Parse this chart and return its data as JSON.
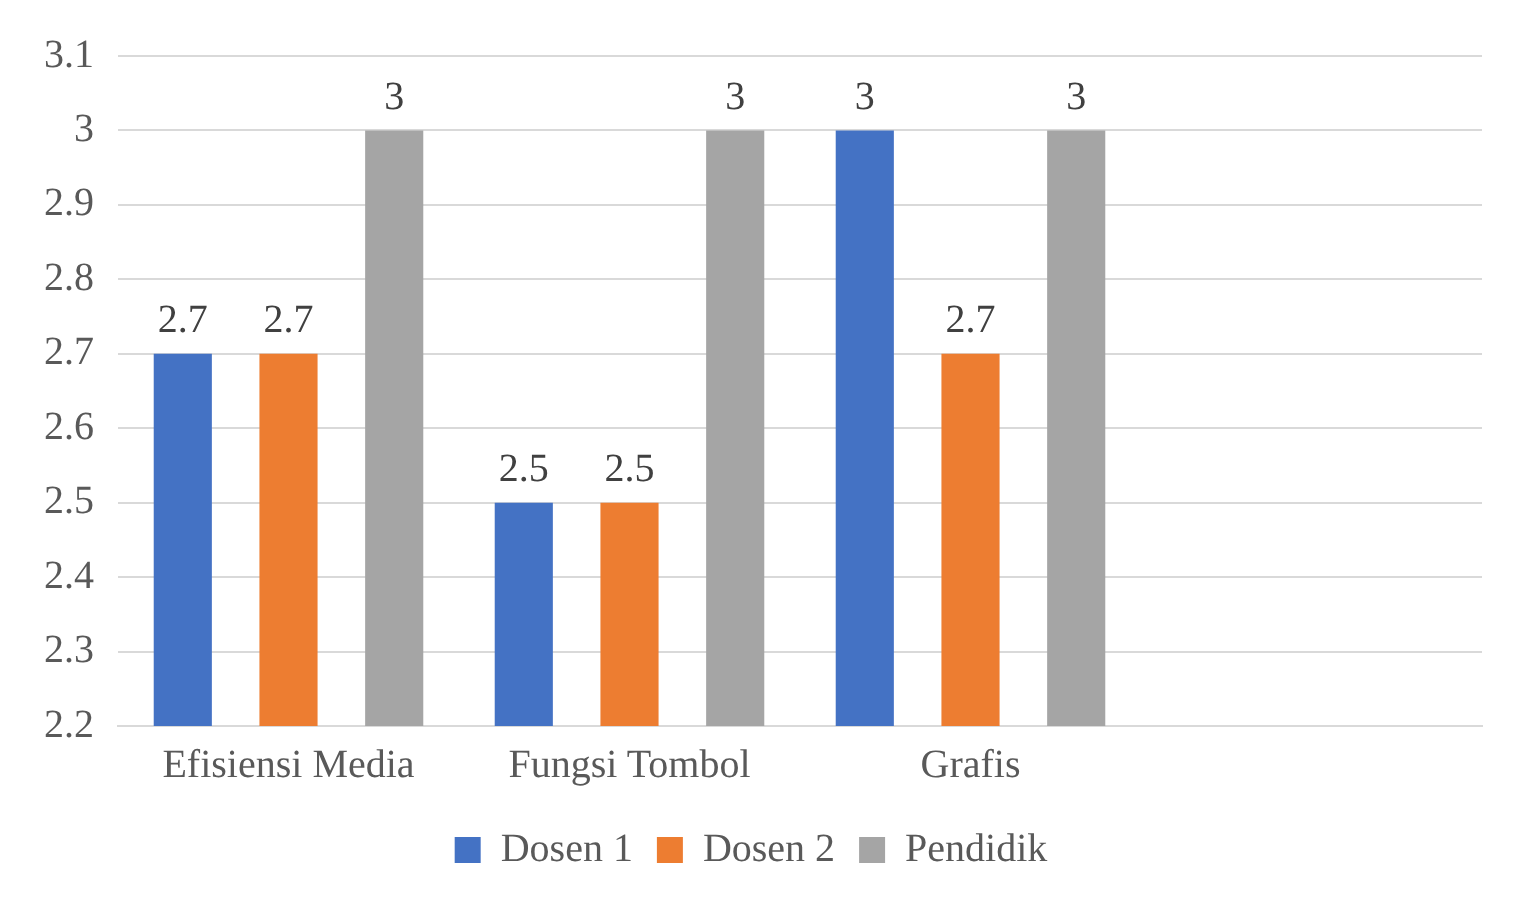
{
  "chart_data": {
    "type": "bar",
    "categories": [
      "Efisiensi Media",
      "Fungsi Tombol",
      "Grafis",
      null
    ],
    "series": [
      {
        "name": "Dosen 1",
        "color": "#4472c4",
        "values": [
          2.7,
          2.5,
          3,
          null
        ]
      },
      {
        "name": "Dosen 2",
        "color": "#ed7d31",
        "values": [
          2.7,
          2.5,
          2.7,
          null
        ]
      },
      {
        "name": "Pendidik",
        "color": "#a5a5a5",
        "values": [
          3,
          3,
          3,
          null
        ]
      }
    ],
    "ylim": [
      2.2,
      3.1
    ],
    "yticks": [
      2.2,
      2.3,
      2.4,
      2.5,
      2.6,
      2.7,
      2.8,
      2.9,
      3,
      3.1
    ],
    "grid": "y",
    "legend": "bottom",
    "data_labels": true
  }
}
